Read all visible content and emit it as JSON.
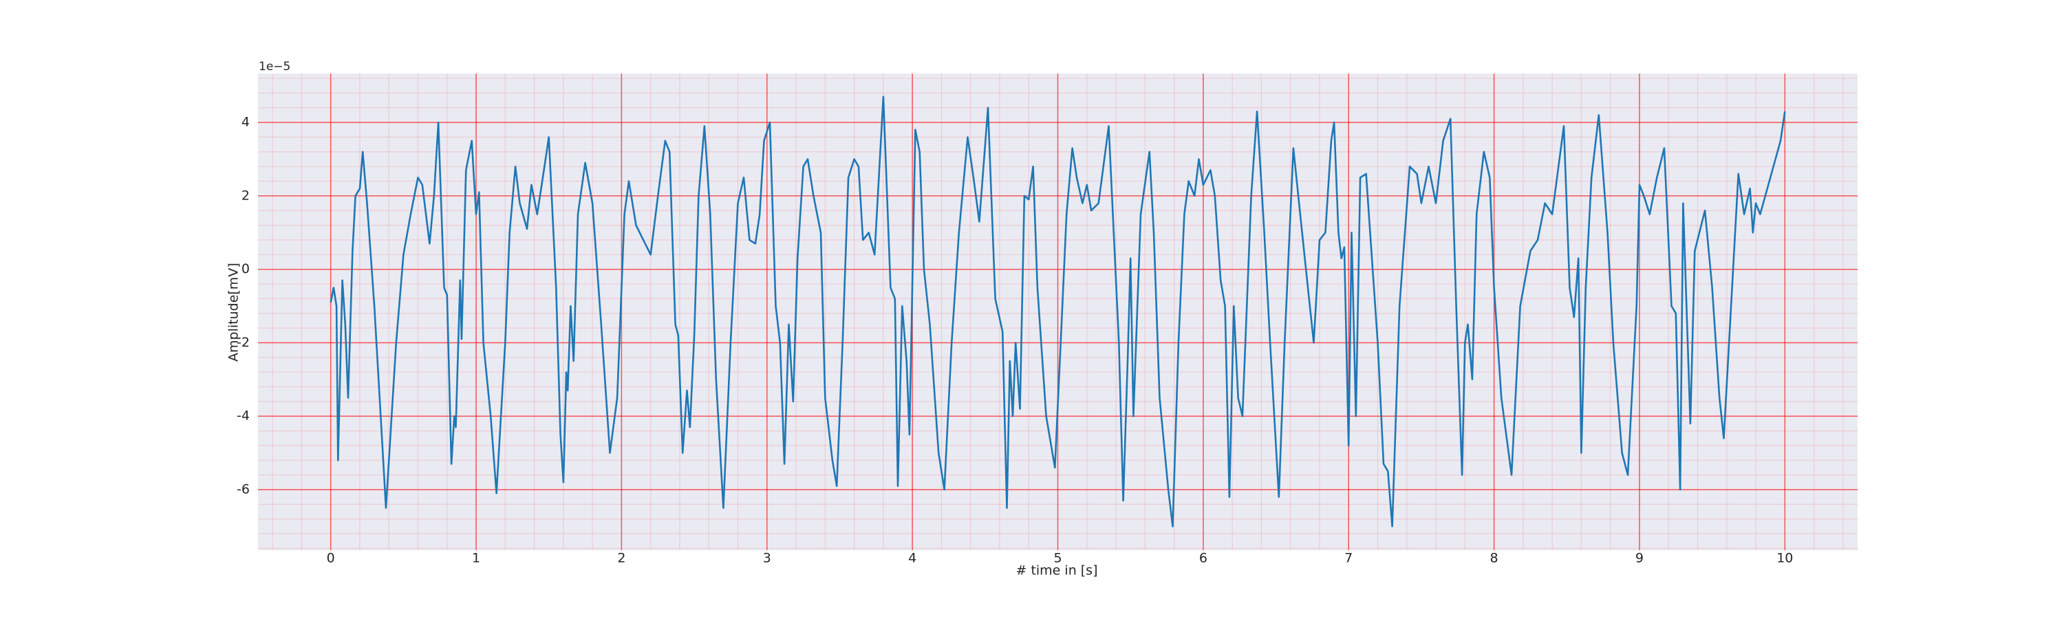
{
  "chart_data": {
    "type": "line",
    "xlabel": "# time in [s]",
    "ylabel": "Amplitude[mV]",
    "offset_text": "1e−5",
    "color": "#1f77b4",
    "background": "#eaeaf2",
    "grid": true,
    "grid_color": "#ff0000",
    "minor_grid": true,
    "xlim": [
      -0.5,
      10.5
    ],
    "xticks": [
      0,
      1,
      2,
      3,
      4,
      5,
      6,
      7,
      8,
      9,
      10
    ],
    "ylim": [
      -7.65,
      5.33
    ],
    "yticks": [
      -6,
      -4,
      -2,
      0,
      2,
      4
    ],
    "x": [
      0.0,
      0.02,
      0.04,
      0.05,
      0.08,
      0.1,
      0.12,
      0.15,
      0.17,
      0.2,
      0.22,
      0.25,
      0.3,
      0.38,
      0.45,
      0.5,
      0.55,
      0.6,
      0.63,
      0.68,
      0.71,
      0.74,
      0.78,
      0.8,
      0.83,
      0.85,
      0.86,
      0.89,
      0.9,
      0.93,
      0.97,
      1.0,
      1.02,
      1.05,
      1.1,
      1.14,
      1.2,
      1.23,
      1.27,
      1.3,
      1.35,
      1.38,
      1.42,
      1.47,
      1.5,
      1.55,
      1.58,
      1.6,
      1.62,
      1.63,
      1.65,
      1.67,
      1.7,
      1.75,
      1.8,
      1.86,
      1.92,
      1.97,
      2.02,
      2.05,
      2.1,
      2.15,
      2.2,
      2.25,
      2.3,
      2.33,
      2.37,
      2.39,
      2.42,
      2.45,
      2.47,
      2.5,
      2.53,
      2.57,
      2.61,
      2.65,
      2.7,
      2.75,
      2.8,
      2.84,
      2.88,
      2.92,
      2.95,
      2.98,
      3.02,
      3.06,
      3.09,
      3.12,
      3.15,
      3.18,
      3.21,
      3.25,
      3.28,
      3.32,
      3.37,
      3.4,
      3.45,
      3.48,
      3.52,
      3.56,
      3.6,
      3.63,
      3.66,
      3.7,
      3.74,
      3.8,
      3.85,
      3.88,
      3.9,
      3.93,
      3.96,
      3.98,
      4.02,
      4.05,
      4.08,
      4.12,
      4.18,
      4.22,
      4.27,
      4.32,
      4.38,
      4.42,
      4.46,
      4.52,
      4.57,
      4.62,
      4.65,
      4.67,
      4.69,
      4.71,
      4.74,
      4.77,
      4.8,
      4.83,
      4.86,
      4.92,
      4.98,
      5.02,
      5.06,
      5.1,
      5.13,
      5.17,
      5.2,
      5.23,
      5.28,
      5.35,
      5.42,
      5.45,
      5.48,
      5.5,
      5.52,
      5.57,
      5.63,
      5.66,
      5.7,
      5.76,
      5.79,
      5.83,
      5.87,
      5.9,
      5.94,
      5.97,
      6.0,
      6.05,
      6.08,
      6.12,
      6.15,
      6.18,
      6.21,
      6.24,
      6.27,
      6.33,
      6.37,
      6.42,
      6.46,
      6.52,
      6.56,
      6.62,
      6.68,
      6.72,
      6.76,
      6.8,
      6.84,
      6.88,
      6.9,
      6.93,
      6.95,
      6.97,
      7.0,
      7.02,
      7.05,
      7.08,
      7.12,
      7.2,
      7.24,
      7.27,
      7.3,
      7.35,
      7.42,
      7.47,
      7.5,
      7.55,
      7.6,
      7.65,
      7.7,
      7.74,
      7.78,
      7.8,
      7.82,
      7.85,
      7.88,
      7.93,
      7.97,
      8.0,
      8.05,
      8.12,
      8.18,
      8.25,
      8.3,
      8.35,
      8.4,
      8.48,
      8.52,
      8.55,
      8.58,
      8.6,
      8.63,
      8.67,
      8.72,
      8.78,
      8.82,
      8.88,
      8.92,
      8.98,
      9.0,
      9.03,
      9.07,
      9.12,
      9.17,
      9.22,
      9.25,
      9.28,
      9.3,
      9.35,
      9.38,
      9.45,
      9.5,
      9.55,
      9.58,
      9.63,
      9.68,
      9.72,
      9.76,
      9.78,
      9.8,
      9.83,
      9.97,
      10.0
    ],
    "values": [
      -0.9,
      -0.5,
      -1.0,
      -5.2,
      -0.3,
      -1.5,
      -3.5,
      0.5,
      2.0,
      2.2,
      3.2,
      1.8,
      -1.0,
      -6.5,
      -2.0,
      0.4,
      1.5,
      2.5,
      2.3,
      0.7,
      2.0,
      4.0,
      -0.5,
      -0.7,
      -5.3,
      -4.0,
      -4.3,
      -0.3,
      -1.9,
      2.7,
      3.5,
      1.5,
      2.1,
      -2.0,
      -4.0,
      -6.1,
      -2.0,
      1.0,
      2.8,
      1.8,
      1.1,
      2.3,
      1.5,
      2.8,
      3.6,
      -0.5,
      -4.5,
      -5.8,
      -2.8,
      -3.3,
      -1.0,
      -2.5,
      1.5,
      2.9,
      1.8,
      -1.5,
      -5.0,
      -3.5,
      1.5,
      2.4,
      1.2,
      0.8,
      0.4,
      2.0,
      3.5,
      3.2,
      -1.5,
      -1.8,
      -5.0,
      -3.3,
      -4.3,
      -1.8,
      2.0,
      3.9,
      1.5,
      -3.0,
      -6.5,
      -2.0,
      1.8,
      2.5,
      0.8,
      0.7,
      1.5,
      3.5,
      4.0,
      -1.0,
      -2.0,
      -5.3,
      -1.5,
      -3.6,
      0.3,
      2.8,
      3.0,
      2.0,
      1.0,
      -3.5,
      -5.2,
      -5.9,
      -2.0,
      2.5,
      3.0,
      2.8,
      0.8,
      1.0,
      0.4,
      4.7,
      -0.5,
      -0.8,
      -5.9,
      -1.0,
      -2.5,
      -4.5,
      3.8,
      3.2,
      0.0,
      -1.5,
      -5.0,
      -6.0,
      -2.0,
      1.0,
      3.6,
      2.5,
      1.3,
      4.4,
      -0.8,
      -1.7,
      -6.5,
      -2.5,
      -4.0,
      -2.0,
      -3.8,
      2.0,
      1.9,
      2.8,
      -0.5,
      -4.0,
      -5.4,
      -2.0,
      1.5,
      3.3,
      2.5,
      1.8,
      2.3,
      1.6,
      1.8,
      3.9,
      -2.0,
      -6.3,
      -2.5,
      0.3,
      -4.0,
      1.5,
      3.2,
      1.0,
      -3.5,
      -6.0,
      -7.0,
      -2.0,
      1.5,
      2.4,
      2.0,
      3.0,
      2.3,
      2.7,
      2.0,
      -0.3,
      -1.0,
      -6.2,
      -1.0,
      -3.5,
      -4.0,
      2.0,
      4.3,
      1.0,
      -2.0,
      -6.2,
      -2.0,
      3.3,
      1.0,
      -0.5,
      -2.0,
      0.8,
      1.0,
      3.5,
      4.0,
      1.0,
      0.3,
      0.6,
      -4.8,
      1.0,
      -4.0,
      2.5,
      2.6,
      -2.0,
      -5.3,
      -5.5,
      -7.0,
      -1.0,
      2.8,
      2.6,
      1.8,
      2.8,
      1.8,
      3.5,
      4.1,
      -1.0,
      -5.6,
      -2.0,
      -1.5,
      -3.0,
      1.5,
      3.2,
      2.5,
      -0.5,
      -3.5,
      -5.6,
      -1.0,
      0.5,
      0.8,
      1.8,
      1.5,
      3.9,
      -0.5,
      -1.3,
      0.3,
      -5.0,
      -0.5,
      2.5,
      4.2,
      1.0,
      -2.0,
      -5.0,
      -5.6,
      -1.0,
      2.3,
      2.0,
      1.5,
      2.5,
      3.3,
      -1.0,
      -1.2,
      -6.0,
      1.8,
      -4.2,
      0.5,
      1.6,
      -0.5,
      -3.5,
      -4.6,
      -1.0,
      2.6,
      1.5,
      2.2,
      1.0,
      1.8,
      1.5,
      3.5,
      4.3
    ]
  }
}
